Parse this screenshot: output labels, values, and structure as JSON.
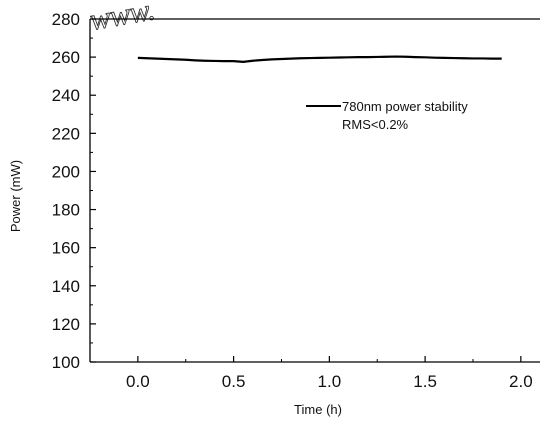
{
  "watermark_text": "www.",
  "chart_data": {
    "type": "line",
    "xlabel": "Time (h)",
    "ylabel": "Power (mW)",
    "xlim": [
      -0.25,
      2.1
    ],
    "ylim": [
      100,
      280
    ],
    "x_ticks": [
      0.0,
      0.5,
      1.0,
      1.5,
      2.0
    ],
    "x_tick_labels": [
      "0.0",
      "0.5",
      "1.0",
      "1.5",
      "2.0"
    ],
    "y_ticks": [
      100,
      120,
      140,
      160,
      180,
      200,
      220,
      240,
      260,
      280
    ],
    "y_tick_labels": [
      "100",
      "120",
      "140",
      "160",
      "180",
      "200",
      "220",
      "240",
      "260",
      "280"
    ],
    "grid": false,
    "legend_position": "top-right",
    "legend_lines": [
      "780nm power stability",
      "RMS<0.2%"
    ],
    "series": [
      {
        "name": "780nm power stability",
        "color": "#000000",
        "x": [
          0.0,
          0.05,
          0.1,
          0.15,
          0.2,
          0.25,
          0.3,
          0.35,
          0.4,
          0.45,
          0.5,
          0.55,
          0.6,
          0.65,
          0.7,
          0.75,
          0.8,
          0.85,
          0.9,
          0.95,
          1.0,
          1.05,
          1.1,
          1.15,
          1.2,
          1.25,
          1.3,
          1.35,
          1.4,
          1.45,
          1.5,
          1.55,
          1.6,
          1.65,
          1.7,
          1.75,
          1.8,
          1.85,
          1.9
        ],
        "y": [
          259.6,
          259.4,
          259.2,
          259.0,
          258.8,
          258.6,
          258.3,
          258.1,
          258.0,
          257.9,
          257.9,
          257.5,
          258.1,
          258.5,
          258.8,
          259.0,
          259.2,
          259.4,
          259.5,
          259.6,
          259.7,
          259.8,
          259.9,
          260.0,
          260.0,
          260.1,
          260.2,
          260.3,
          260.2,
          260.0,
          259.9,
          259.7,
          259.6,
          259.5,
          259.4,
          259.3,
          259.3,
          259.2,
          259.2
        ]
      }
    ]
  }
}
